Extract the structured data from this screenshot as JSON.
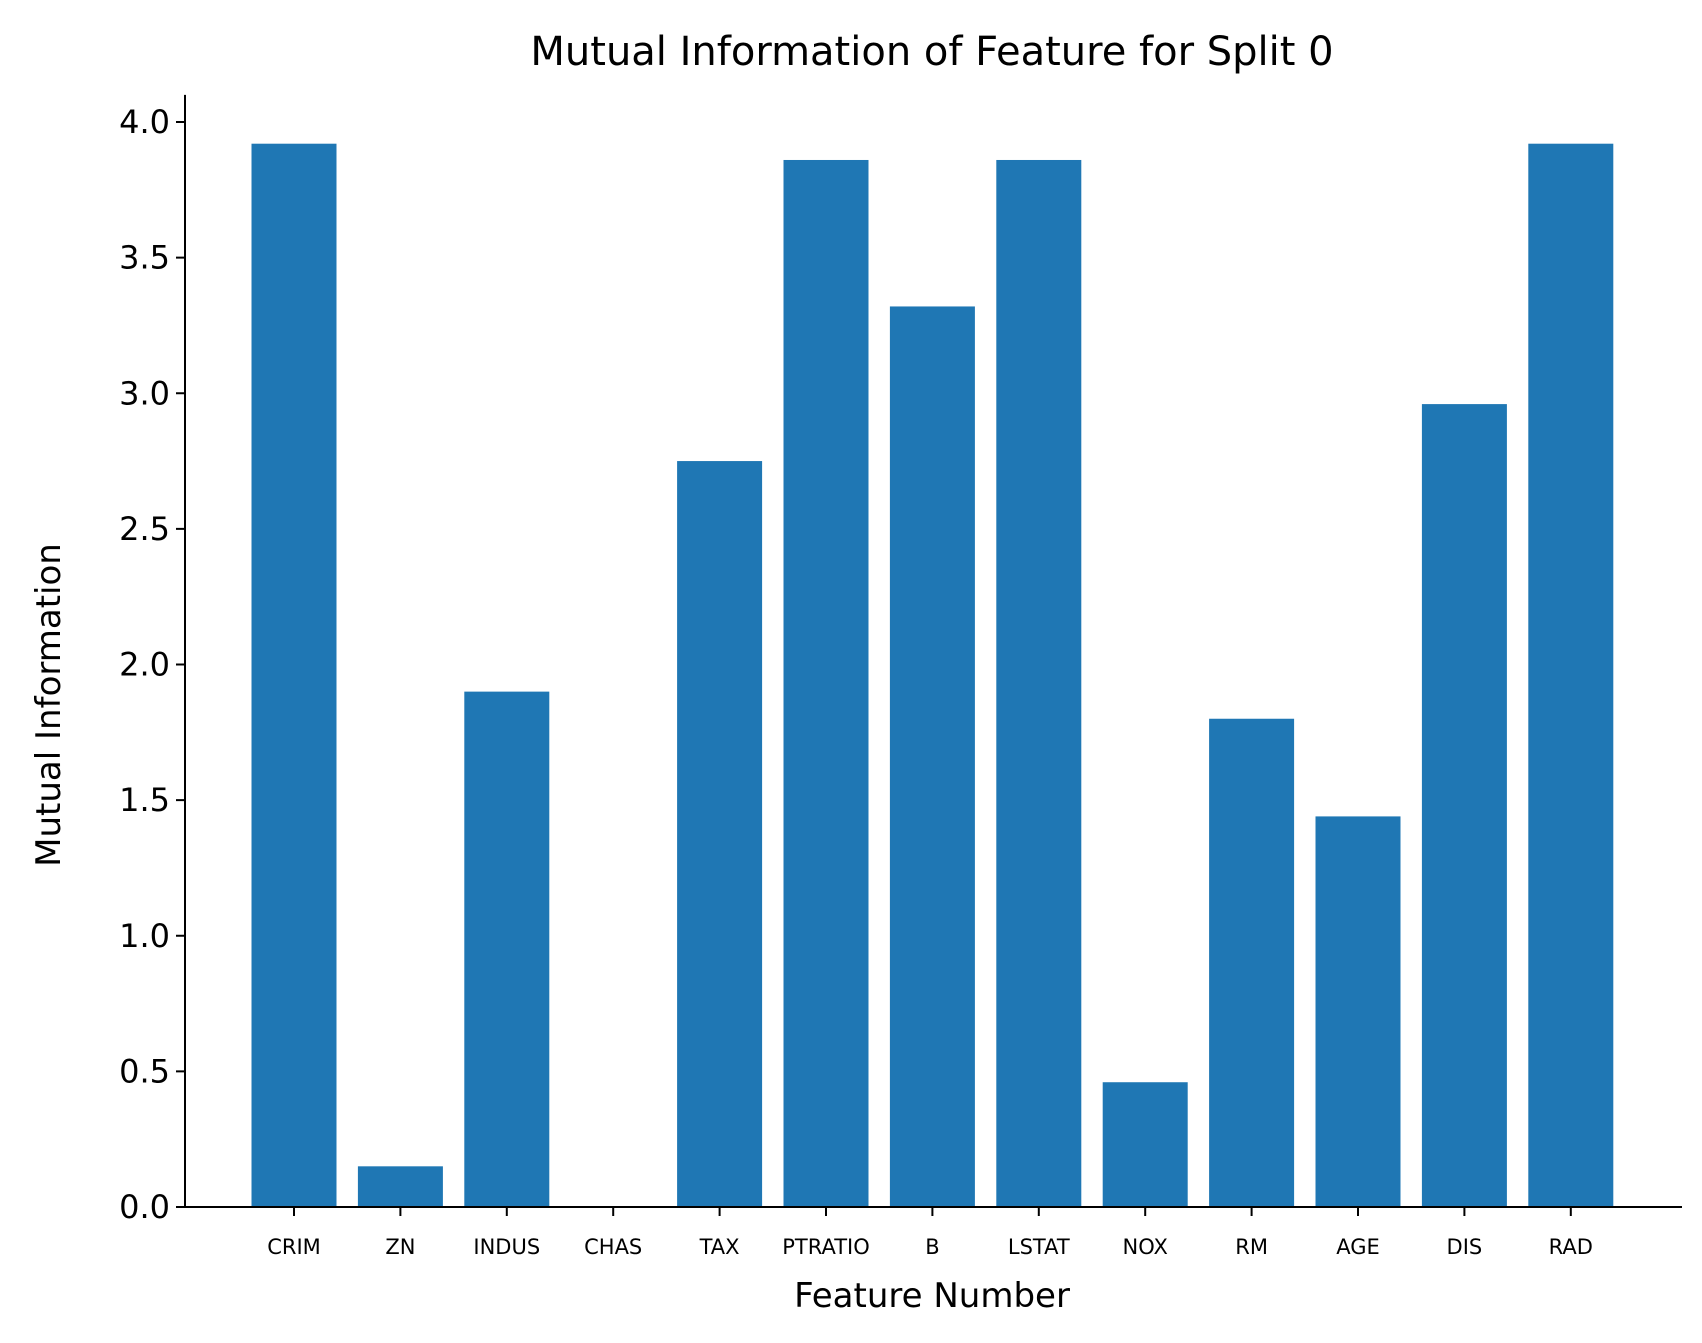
{
  "chart_data": {
    "type": "bar",
    "title": "Mutual Information of Feature for Split 0",
    "xlabel": "Feature Number",
    "ylabel": "Mutual Information",
    "categories": [
      "CRIM",
      "ZN",
      "INDUS",
      "CHAS",
      "TAX",
      "PTRATIO",
      "B",
      "LSTAT",
      "NOX",
      "RM",
      "AGE",
      "DIS",
      "RAD"
    ],
    "values": [
      3.92,
      0.15,
      1.9,
      0.0,
      2.75,
      3.86,
      3.32,
      3.86,
      0.46,
      1.8,
      1.44,
      2.96,
      3.92
    ],
    "ylim": [
      0,
      4.1
    ],
    "yticks": [
      "0.0",
      "0.5",
      "1.0",
      "1.5",
      "2.0",
      "2.5",
      "3.0",
      "3.5",
      "4.0"
    ],
    "grid": false,
    "bar_color": "#1f77b4"
  }
}
